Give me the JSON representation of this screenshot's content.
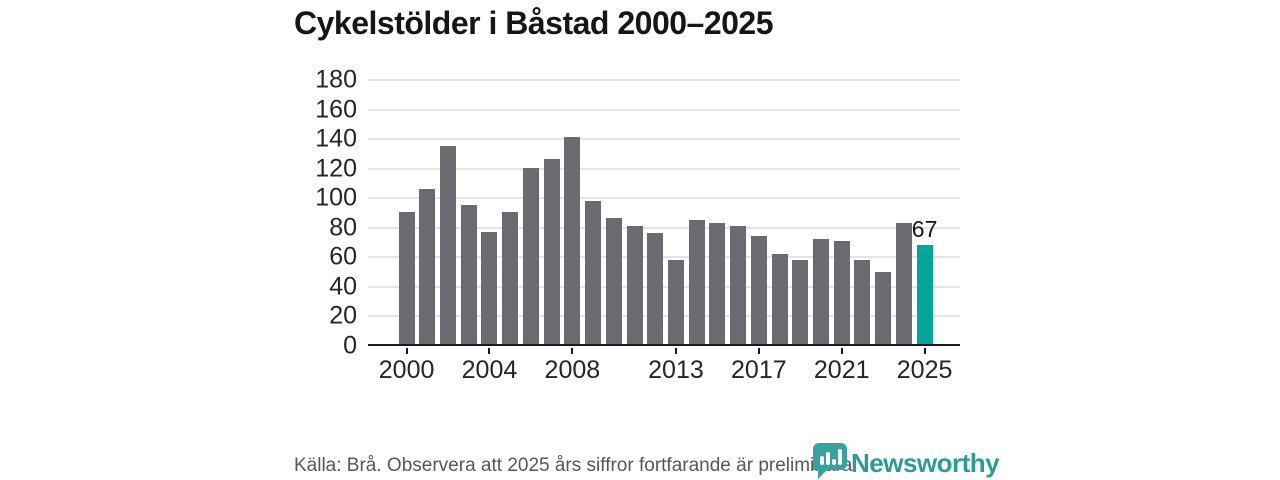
{
  "title": "Cykelstölder i Båstad 2000–2025",
  "chart_data": {
    "type": "bar",
    "x": [
      2000,
      2001,
      2002,
      2003,
      2004,
      2005,
      2006,
      2007,
      2008,
      2009,
      2010,
      2011,
      2012,
      2013,
      2014,
      2015,
      2016,
      2017,
      2018,
      2019,
      2020,
      2021,
      2022,
      2023,
      2024,
      2025
    ],
    "values": [
      89,
      105,
      134,
      94,
      76,
      89,
      119,
      125,
      140,
      97,
      85,
      80,
      75,
      57,
      84,
      82,
      80,
      73,
      61,
      57,
      71,
      70,
      57,
      49,
      82,
      67
    ],
    "title": "Cykelstölder i Båstad 2000–2025",
    "xlabel": "",
    "ylabel": "",
    "ylim": [
      0,
      180
    ],
    "yticks": [
      0,
      20,
      40,
      60,
      80,
      100,
      120,
      140,
      160,
      180
    ],
    "xticks": [
      2000,
      2004,
      2008,
      2013,
      2017,
      2021,
      2025
    ],
    "grid": true,
    "legend": false,
    "bar_color": "#6a6a70",
    "highlight_color": "#00a69c",
    "highlight_index": 25,
    "highlight_label": "67"
  },
  "footer": {
    "source_text": "Källa: Brå. Observera att 2025 års siffror fortfarande är preliminära."
  },
  "branding": {
    "wordmark": "Newsworthy",
    "brand_color": "#2c9c96",
    "logo_color": "#38a39d",
    "logo_icon": "newsworthy-bubble-barchart-icon"
  }
}
